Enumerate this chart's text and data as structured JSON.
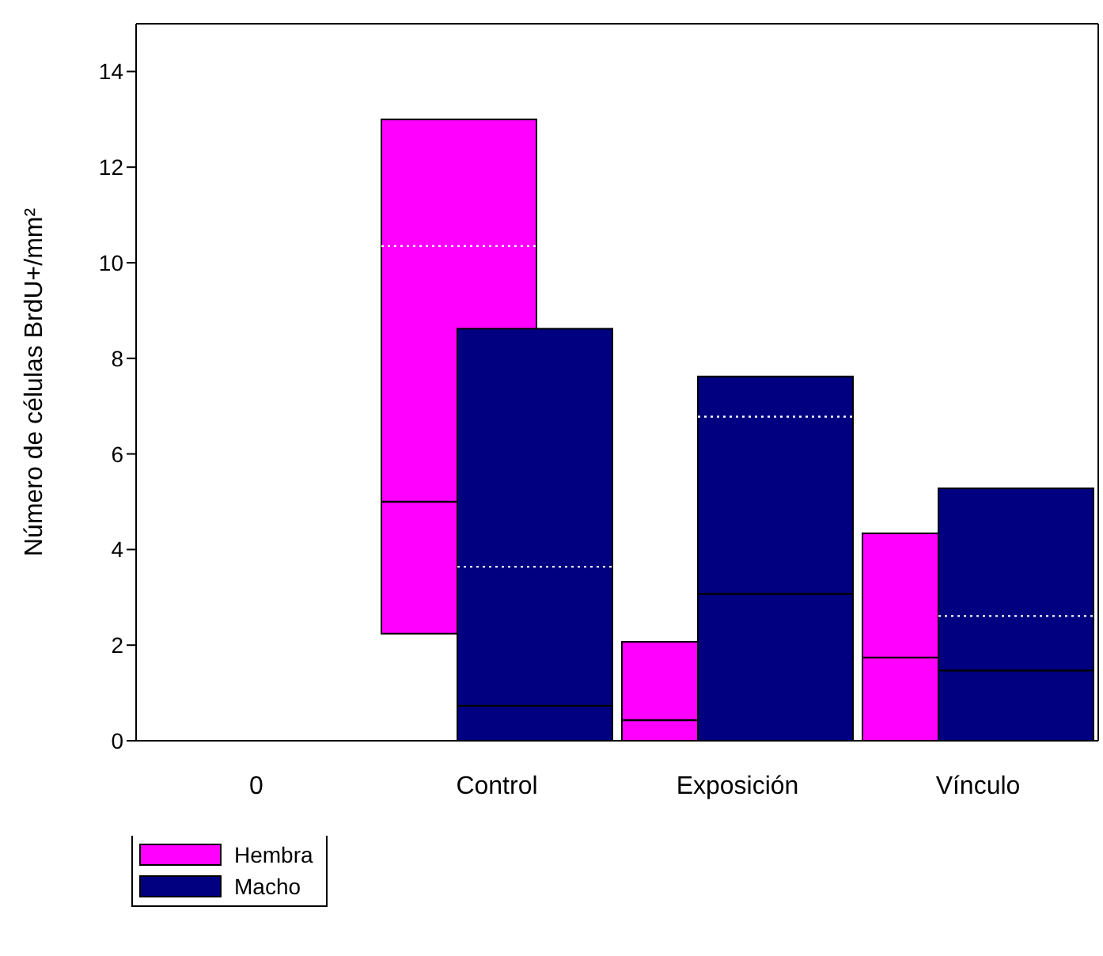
{
  "chart_data": {
    "type": "box",
    "ylabel": "Número de células BrdU+/mm²",
    "categories": [
      "0",
      "Control",
      "Exposición",
      "Vínculo"
    ],
    "ylim": [
      0,
      15
    ],
    "yticks": [
      0,
      2,
      4,
      6,
      8,
      10,
      12,
      14
    ],
    "grid": false,
    "legend": "bottom left",
    "series": [
      {
        "name": "Hembra",
        "color": "#ff00ff",
        "boxes": [
          null,
          {
            "low": 2.24,
            "q1": 2.24,
            "median": 5.0,
            "q3": 13.0,
            "high": 13.0,
            "mean": 10.35
          },
          {
            "low": 0,
            "q1": 0,
            "median": 0.43,
            "q3": 2.07,
            "high": 2.07
          },
          {
            "low": 0,
            "q1": 0,
            "median": 1.74,
            "q3": 4.34,
            "high": 4.34
          }
        ]
      },
      {
        "name": "Macho",
        "color": "#000080",
        "boxes": [
          null,
          {
            "low": 0,
            "q1": 0,
            "median": 0.73,
            "q3": 8.62,
            "high": 8.62,
            "mean": 3.64
          },
          {
            "low": 0,
            "q1": 0,
            "median": 3.07,
            "q3": 7.62,
            "high": 7.62,
            "mean": 6.78
          },
          {
            "low": 0,
            "q1": 0,
            "median": 1.47,
            "q3": 5.28,
            "high": 5.28,
            "mean": 2.61
          }
        ]
      }
    ]
  }
}
